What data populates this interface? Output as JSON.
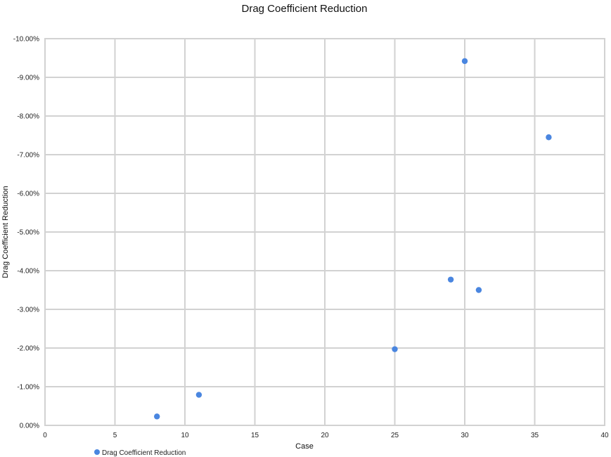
{
  "chart_data": {
    "type": "scatter",
    "title": "Drag Coefficient Reduction",
    "xlabel": "Case",
    "ylabel": "Drag Coefficient Reduction",
    "xlim": [
      0,
      40
    ],
    "ylim": [
      0,
      -0.1
    ],
    "y_axis_reversed": true,
    "grid": true,
    "legend_position": "bottom-left",
    "x_ticks": [
      "0",
      "5",
      "10",
      "15",
      "20",
      "25",
      "30",
      "35",
      "40"
    ],
    "y_ticks": [
      "0.00%",
      "-1.00%",
      "-2.00%",
      "-3.00%",
      "-4.00%",
      "-5.00%",
      "-6.00%",
      "-7.00%",
      "-8.00%",
      "-9.00%",
      "-10.00%"
    ],
    "series": [
      {
        "name": "Drag Coefficient Reduction",
        "color": "#4a86e0",
        "points": [
          {
            "x": 8,
            "y": -0.0023
          },
          {
            "x": 11,
            "y": -0.0079
          },
          {
            "x": 25,
            "y": -0.0197
          },
          {
            "x": 29,
            "y": -0.0377
          },
          {
            "x": 30,
            "y": -0.0942
          },
          {
            "x": 31,
            "y": -0.035
          },
          {
            "x": 36,
            "y": -0.0745
          }
        ]
      }
    ]
  }
}
